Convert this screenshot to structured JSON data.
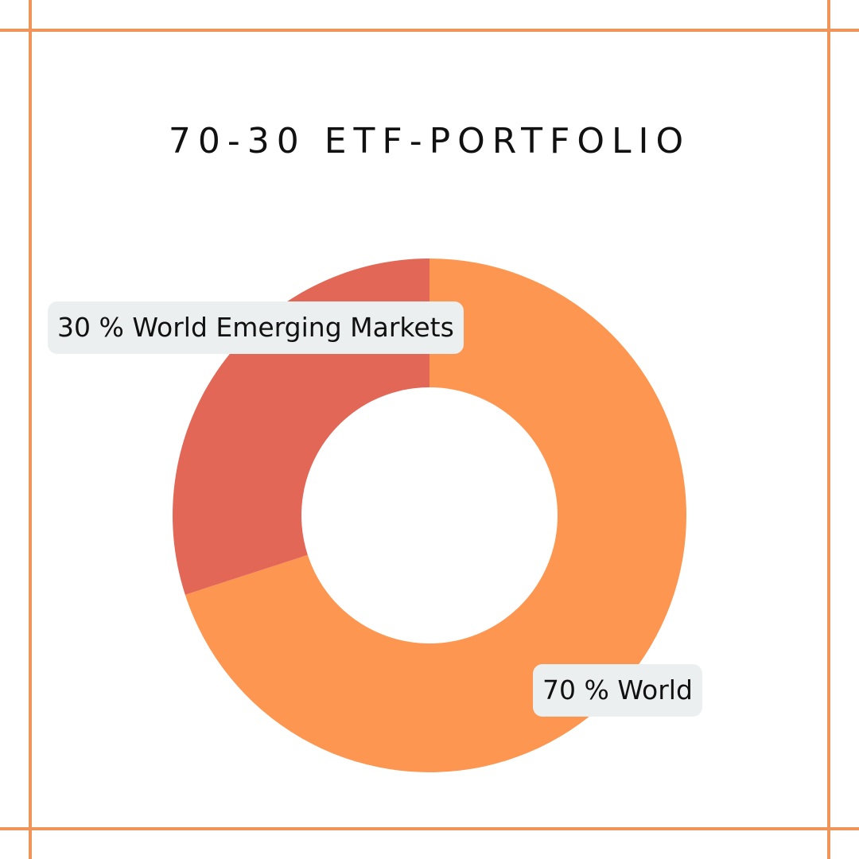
{
  "title": "70-30 ETF-PORTFOLIO",
  "colors": {
    "frame": "#f0955a",
    "world": "#fd9650",
    "emerging": "#e36756",
    "label_bg": "#eceff0",
    "text": "#111111"
  },
  "labels": {
    "emerging": "30 % World Emerging Markets",
    "world": "70 % World"
  },
  "chart_data": {
    "type": "pie",
    "subtype": "donut",
    "title": "70-30 ETF-PORTFOLIO",
    "categories": [
      "World",
      "World Emerging Markets"
    ],
    "values": [
      70,
      30
    ],
    "unit": "%",
    "colors": [
      "#fd9650",
      "#e36756"
    ],
    "data_labels": [
      "70 % World",
      "30 % World Emerging Markets"
    ],
    "legend": "none (inline labels)"
  }
}
